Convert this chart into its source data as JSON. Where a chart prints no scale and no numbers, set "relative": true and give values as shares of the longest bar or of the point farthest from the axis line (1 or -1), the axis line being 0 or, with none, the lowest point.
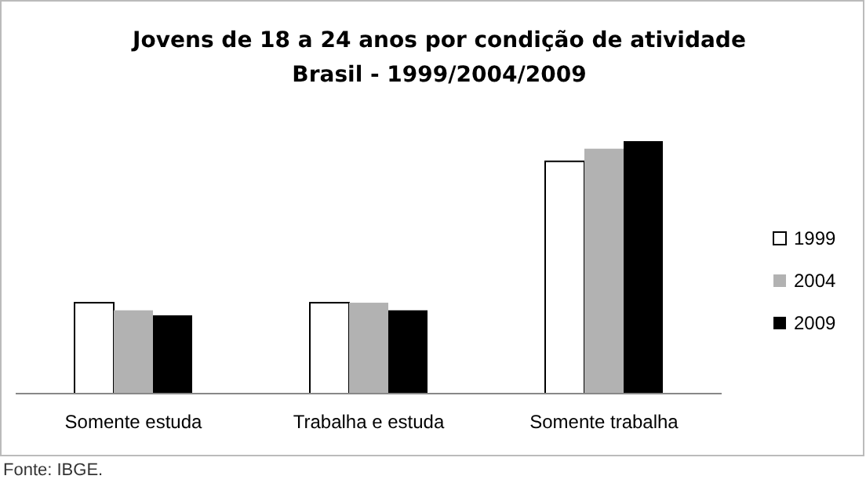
{
  "chart_data": {
    "type": "bar",
    "title": "Jovens de 18 a 24 anos por condição de atividade",
    "subtitle": "Brasil - 1999/2004/2009",
    "categories": [
      "Somente estuda",
      "Trabalha e estuda",
      "Somente trabalha"
    ],
    "relative": true,
    "series": [
      {
        "name": "1999",
        "color": "#ffffff",
        "values": [
          0.36,
          0.36,
          0.92
        ]
      },
      {
        "name": "2004",
        "color": "#b2b2b2",
        "values": [
          0.33,
          0.36,
          0.97
        ]
      },
      {
        "name": "2009",
        "color": "#000000",
        "values": [
          0.31,
          0.33,
          1
        ]
      }
    ],
    "legend": "right",
    "annotations": [
      "Fonte: IBGE."
    ]
  }
}
